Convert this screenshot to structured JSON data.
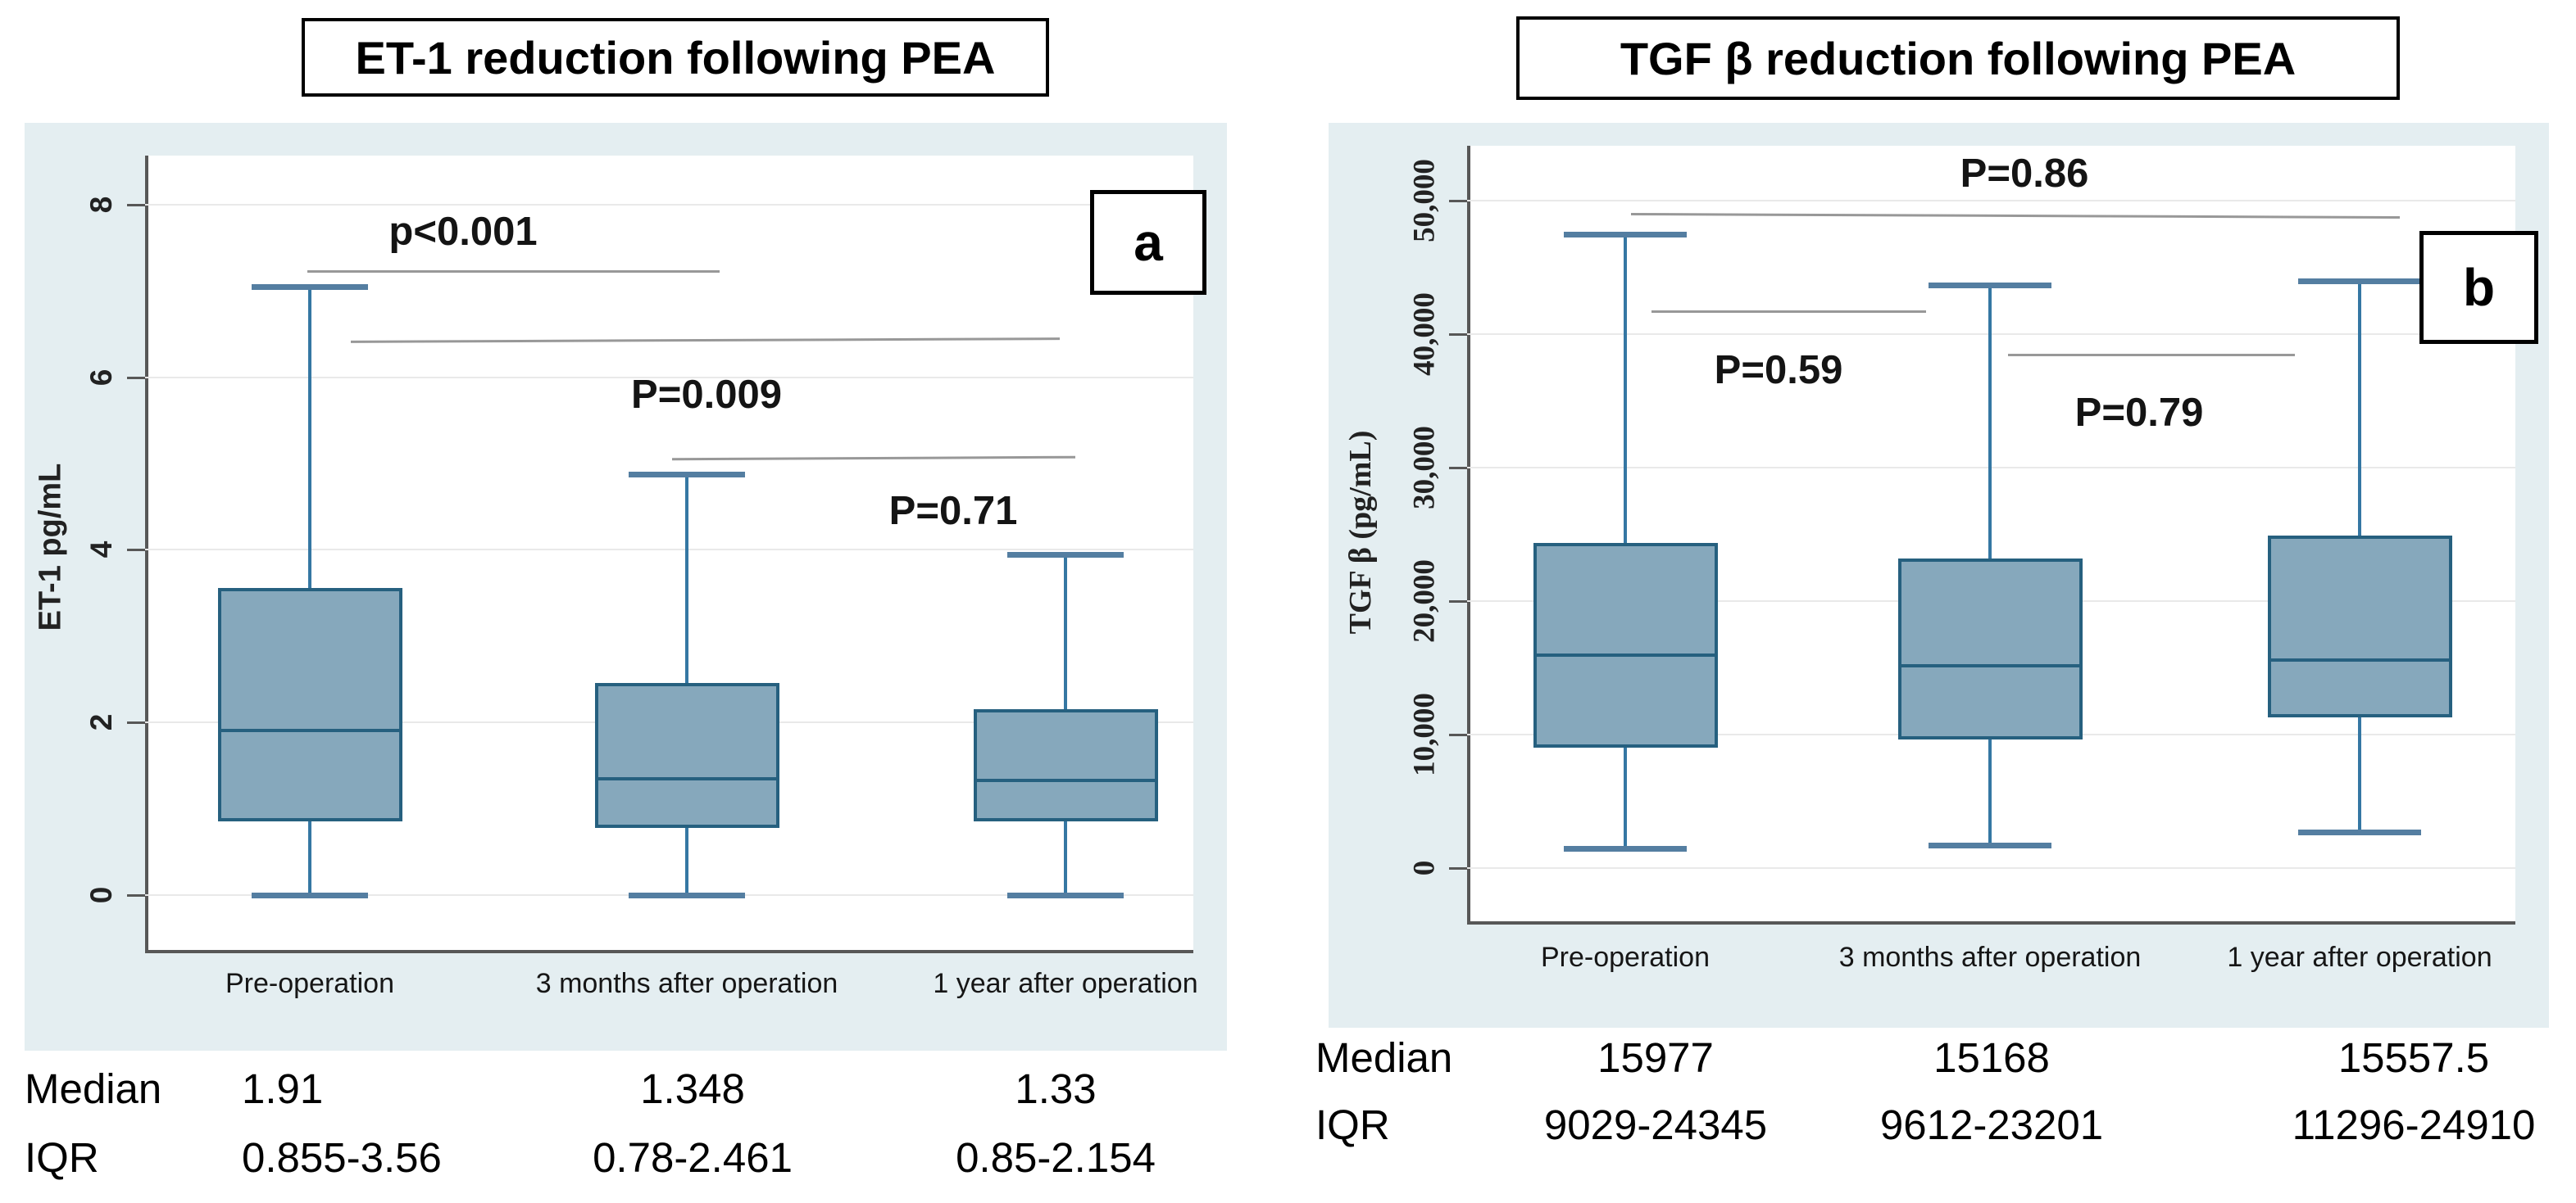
{
  "page": {
    "background": "#ffffff"
  },
  "colors": {
    "panel_bg": "#e4eef1",
    "plot_bg": "#ffffff",
    "box_fill": "#86a8bc",
    "box_border": "#26607f",
    "median_line": "#1d5070",
    "whisker": "#3577a3",
    "whisker_cap": "#547ea1",
    "axis_line": "#575757",
    "gridline": "#e9e9e9",
    "bracket_line": "#989898",
    "text": "#141414"
  },
  "chart_data": [
    {
      "type": "boxplot",
      "panel_label": "a",
      "title": "ET-1 reduction following PEA",
      "ylabel": "ET-1 pg/mL",
      "xlabel": "",
      "ylim": [
        0,
        8.6
      ],
      "yticks": [
        0,
        2,
        4,
        6,
        8
      ],
      "ytick_labels": [
        "0",
        "2",
        "4",
        "6",
        "8"
      ],
      "grid": "horizontal",
      "legend": "none",
      "categories": [
        "Pre-operation",
        "3 months after operation",
        "1 year after operation"
      ],
      "series": [
        {
          "category": "Pre-operation",
          "median": 1.91,
          "q1": 0.855,
          "q3": 3.56,
          "whisker_low": 0,
          "whisker_high": 7.05
        },
        {
          "category": "3 months after operation",
          "median": 1.348,
          "q1": 0.78,
          "q3": 2.461,
          "whisker_low": 0,
          "whisker_high": 4.88
        },
        {
          "category": "1 year after operation",
          "median": 1.33,
          "q1": 0.85,
          "q3": 2.154,
          "whisker_low": 0,
          "whisker_high": 3.95
        }
      ],
      "comparisons": [
        {
          "label": "p<0.001",
          "between": [
            "Pre-operation",
            "3 months after operation"
          ]
        },
        {
          "label": "P=0.009",
          "between": [
            "Pre-operation",
            "1 year after operation"
          ]
        },
        {
          "label": "P=0.71",
          "between": [
            "3 months after operation",
            "1 year after operation"
          ]
        }
      ],
      "stats_table": {
        "rows": [
          {
            "label": "Median",
            "values": [
              "1.91",
              "1.348",
              "1.33"
            ]
          },
          {
            "label": "IQR",
            "values": [
              "0.855-3.56",
              "0.78-2.461",
              "0.85-2.154"
            ]
          }
        ]
      }
    },
    {
      "type": "boxplot",
      "panel_label": "b",
      "title": "TGF β reduction following PEA",
      "ylabel": "TGF β (pg/mL)",
      "xlabel": "",
      "ylim": [
        0,
        52000
      ],
      "yticks": [
        0,
        10000,
        20000,
        30000,
        40000,
        50000
      ],
      "ytick_labels": [
        "0",
        "10,000",
        "20,000",
        "30,000",
        "40,000",
        "50,000"
      ],
      "grid": "horizontal",
      "legend": "none",
      "categories": [
        "Pre-operation",
        "3 months after operation",
        "1 year after operation"
      ],
      "series": [
        {
          "category": "Pre-operation",
          "median": 15977,
          "q1": 9029,
          "q3": 24345,
          "whisker_low": 1500,
          "whisker_high": 47500
        },
        {
          "category": "3 months after operation",
          "median": 15168,
          "q1": 9612,
          "q3": 23201,
          "whisker_low": 1700,
          "whisker_high": 43700
        },
        {
          "category": "1 year after operation",
          "median": 15557.5,
          "q1": 11296,
          "q3": 24910,
          "whisker_low": 2700,
          "whisker_high": 44000
        }
      ],
      "comparisons": [
        {
          "label": "P=0.86",
          "between": [
            "Pre-operation",
            "1 year after operation"
          ]
        },
        {
          "label": "P=0.59",
          "between": [
            "Pre-operation",
            "3 months after operation"
          ]
        },
        {
          "label": "P=0.79",
          "between": [
            "3 months after operation",
            "1 year after operation"
          ]
        }
      ],
      "stats_table": {
        "rows": [
          {
            "label": "Median",
            "values": [
              "15977",
              "15168",
              "15557.5"
            ]
          },
          {
            "label": "IQR",
            "values": [
              "9029-24345",
              "9612-23201",
              "11296-24910"
            ]
          }
        ]
      }
    }
  ]
}
